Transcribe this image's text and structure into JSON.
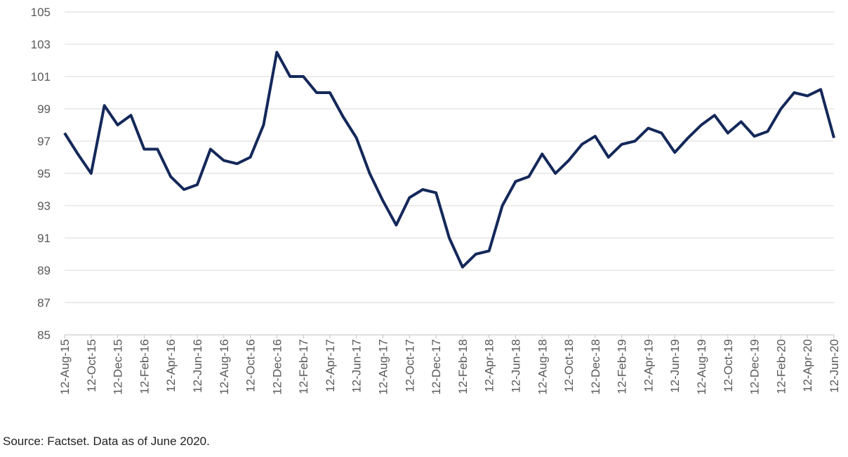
{
  "chart_data": {
    "type": "line",
    "x": [
      "12-Aug-15",
      "12-Sep-15",
      "12-Oct-15",
      "12-Nov-15",
      "12-Dec-15",
      "12-Jan-16",
      "12-Feb-16",
      "12-Mar-16",
      "12-Apr-16",
      "12-May-16",
      "12-Jun-16",
      "12-Jul-16",
      "12-Aug-16",
      "12-Sep-16",
      "12-Oct-16",
      "12-Nov-16",
      "12-Dec-16",
      "12-Jan-17",
      "12-Feb-17",
      "12-Mar-17",
      "12-Apr-17",
      "12-May-17",
      "12-Jun-17",
      "12-Jul-17",
      "12-Aug-17",
      "12-Sep-17",
      "12-Oct-17",
      "12-Nov-17",
      "12-Dec-17",
      "12-Jan-18",
      "12-Feb-18",
      "12-Mar-18",
      "12-Apr-18",
      "12-May-18",
      "12-Jun-18",
      "12-Jul-18",
      "12-Aug-18",
      "12-Sep-18",
      "12-Oct-18",
      "12-Nov-18",
      "12-Dec-18",
      "12-Jan-19",
      "12-Feb-19",
      "12-Mar-19",
      "12-Apr-19",
      "12-May-19",
      "12-Jun-19",
      "12-Jul-19",
      "12-Aug-19",
      "12-Sep-19",
      "12-Oct-19",
      "12-Nov-19",
      "12-Dec-19",
      "12-Jan-20",
      "12-Feb-20",
      "12-Mar-20",
      "12-Apr-20",
      "12-May-20",
      "12-Jun-20"
    ],
    "series": [
      {
        "color": "#14285a",
        "values": [
          97.5,
          96.2,
          95.0,
          99.2,
          98.0,
          98.6,
          96.5,
          96.5,
          94.8,
          94.0,
          94.3,
          96.5,
          95.8,
          95.6,
          96.0,
          98.0,
          102.5,
          101.0,
          101.0,
          100.0,
          100.0,
          98.5,
          97.2,
          95.0,
          93.3,
          91.8,
          93.5,
          94.0,
          93.8,
          91.0,
          89.2,
          90.0,
          90.2,
          93.0,
          94.5,
          94.8,
          96.2,
          95.0,
          95.8,
          96.8,
          97.3,
          96.0,
          96.8,
          97.0,
          97.8,
          97.5,
          96.3,
          97.2,
          98.0,
          98.6,
          97.5,
          98.2,
          97.3,
          97.6,
          99.0,
          100.0,
          99.8,
          100.2,
          97.2
        ]
      }
    ],
    "xticks": [
      "12-Aug-15",
      "12-Oct-15",
      "12-Dec-15",
      "12-Feb-16",
      "12-Apr-16",
      "12-Jun-16",
      "12-Aug-16",
      "12-Oct-16",
      "12-Dec-16",
      "12-Feb-17",
      "12-Apr-17",
      "12-Jun-17",
      "12-Aug-17",
      "12-Oct-17",
      "12-Dec-17",
      "12-Feb-18",
      "12-Apr-18",
      "12-Jun-18",
      "12-Aug-18",
      "12-Oct-18",
      "12-Dec-18",
      "12-Feb-19",
      "12-Apr-19",
      "12-Jun-19",
      "12-Aug-19",
      "12-Oct-19",
      "12-Dec-19",
      "12-Feb-20",
      "12-Apr-20",
      "12-Jun-20"
    ],
    "ylim": [
      85,
      105
    ],
    "yticks": [
      85,
      87,
      89,
      91,
      93,
      95,
      97,
      99,
      101,
      103,
      105
    ],
    "grid": true,
    "source": "Source: Factset. Data as of June 2020."
  }
}
